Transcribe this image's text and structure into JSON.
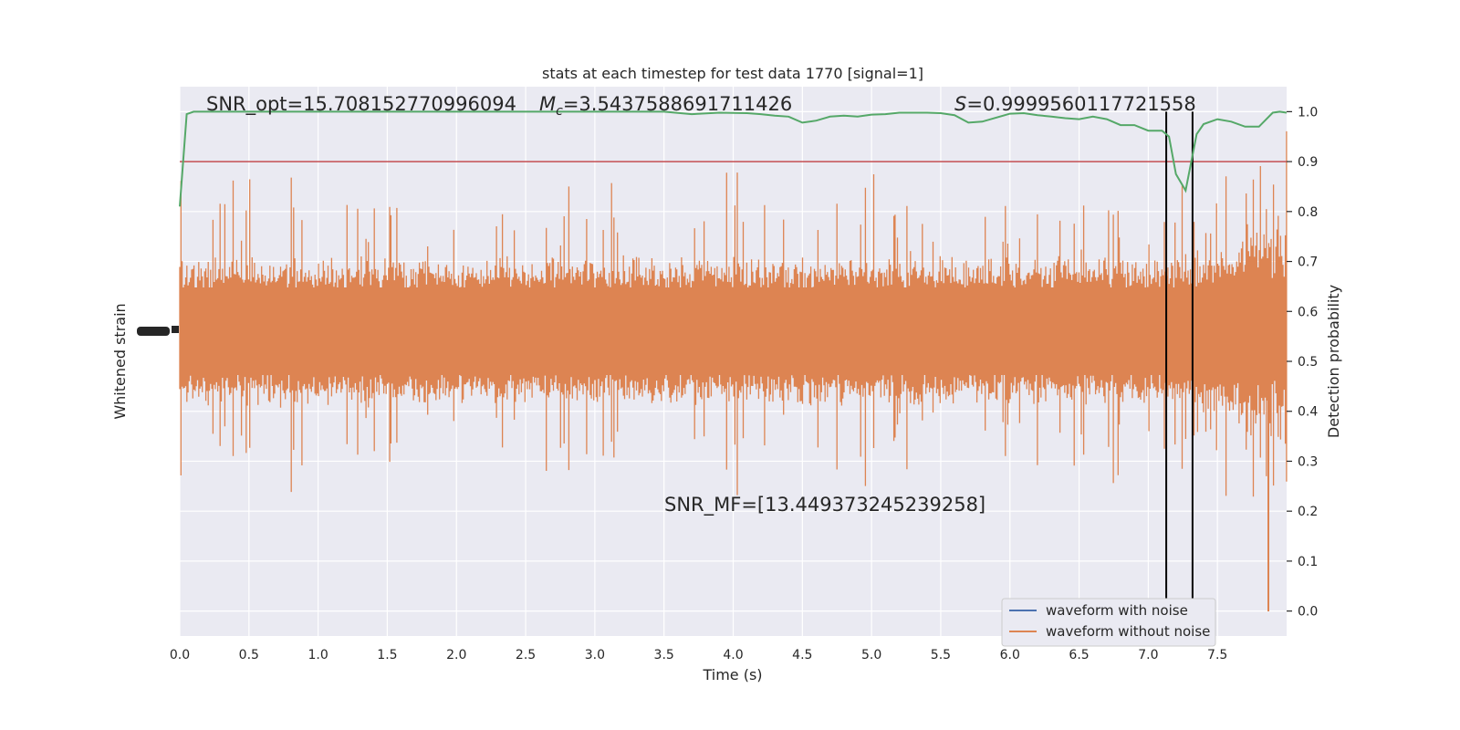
{
  "chart_data": {
    "type": "line",
    "title": "stats at each timestep for test data 1770 [signal=1]",
    "xlabel": "Time (s)",
    "ylabel_left": "Whitened strain",
    "ylabel_right": "Detection probability",
    "xlim": [
      0,
      8
    ],
    "ylim_right": [
      -0.05,
      1.05
    ],
    "x_ticks": [
      "0.0",
      "0.5",
      "1.0",
      "1.5",
      "2.0",
      "2.5",
      "3.0",
      "3.5",
      "4.0",
      "4.5",
      "5.0",
      "5.5",
      "6.0",
      "6.5",
      "7.0",
      "7.5"
    ],
    "y_ticks_right": [
      "0.0",
      "0.1",
      "0.2",
      "0.3",
      "0.4",
      "0.5",
      "0.6",
      "0.7",
      "0.8",
      "0.9",
      "1.0"
    ],
    "grid": true,
    "legend_position": "bottom-right",
    "annotations": {
      "snr_opt": "SNR_opt=15.708152770996094",
      "mc_symbol": "M",
      "mc_sub": "c",
      "mc_value": "=3.5437588691711426",
      "s_symbol": "S",
      "s_value": "=0.9999560117721558",
      "snr_mf": "SNR_MF=[13.449373245239258]"
    },
    "threshold": 0.9,
    "vertical_markers": [
      7.13,
      7.32
    ],
    "series": [
      {
        "name": "waveform with noise",
        "color": "#4c72b0"
      },
      {
        "name": "waveform without noise",
        "color": "#dd8452"
      },
      {
        "color": "#55a868",
        "x": [
          0.0,
          0.05,
          0.1,
          0.2,
          0.3,
          0.5,
          1.0,
          1.5,
          2.0,
          2.5,
          3.0,
          3.3,
          3.5,
          3.7,
          3.9,
          4.1,
          4.2,
          4.3,
          4.4,
          4.5,
          4.6,
          4.7,
          4.8,
          4.9,
          5.0,
          5.1,
          5.2,
          5.4,
          5.5,
          5.6,
          5.7,
          5.8,
          6.0,
          6.1,
          6.2,
          6.3,
          6.4,
          6.5,
          6.6,
          6.7,
          6.8,
          6.9,
          7.0,
          7.1,
          7.15,
          7.2,
          7.27,
          7.35,
          7.4,
          7.5,
          7.6,
          7.7,
          7.8,
          7.9,
          7.95,
          8.0
        ],
        "values": [
          0.81,
          0.995,
          1.0,
          1.0,
          1.0,
          1.0,
          1.0,
          1.0,
          1.0,
          1.0,
          1.0,
          1.0,
          1.0,
          0.995,
          0.998,
          0.997,
          0.995,
          0.992,
          0.99,
          0.978,
          0.982,
          0.99,
          0.992,
          0.99,
          0.994,
          0.995,
          0.998,
          0.998,
          0.997,
          0.993,
          0.978,
          0.98,
          0.996,
          0.997,
          0.993,
          0.99,
          0.987,
          0.985,
          0.99,
          0.985,
          0.973,
          0.973,
          0.962,
          0.962,
          0.95,
          0.875,
          0.842,
          0.955,
          0.975,
          0.985,
          0.98,
          0.97,
          0.97,
          0.998,
          1.0,
          0.998
        ]
      }
    ]
  }
}
